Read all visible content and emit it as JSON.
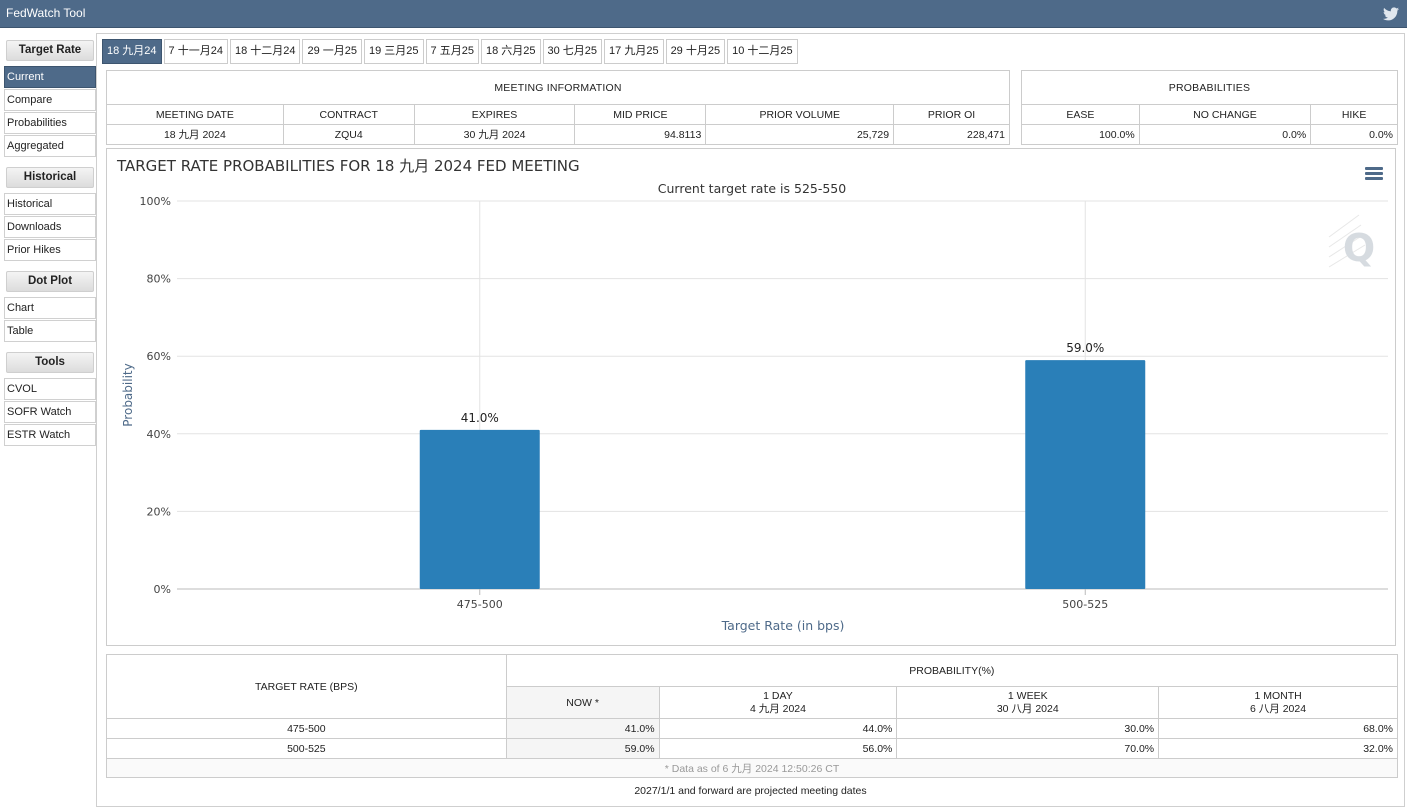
{
  "app": {
    "title": "FedWatch Tool",
    "twitter_icon": "twitter-icon"
  },
  "sidebar": {
    "sections": [
      {
        "label": "Target Rate",
        "items": [
          {
            "label": "Current",
            "active": true
          },
          {
            "label": "Compare"
          },
          {
            "label": "Probabilities"
          },
          {
            "label": "Aggregated"
          }
        ]
      },
      {
        "label": "Historical",
        "items": [
          {
            "label": "Historical"
          },
          {
            "label": "Downloads"
          },
          {
            "label": "Prior Hikes"
          }
        ]
      },
      {
        "label": "Dot Plot",
        "items": [
          {
            "label": "Chart"
          },
          {
            "label": "Table"
          }
        ]
      },
      {
        "label": "Tools",
        "items": [
          {
            "label": "CVOL"
          },
          {
            "label": "SOFR Watch"
          },
          {
            "label": "ESTR Watch"
          }
        ]
      }
    ]
  },
  "tabs": [
    "18 九月24",
    "7 十一月24",
    "18 十二月24",
    "29 一月25",
    "19 三月25",
    "7 五月25",
    "18 六月25",
    "30 七月25",
    "17 九月25",
    "29 十月25",
    "10 十二月25"
  ],
  "meeting_info": {
    "header": "MEETING INFORMATION",
    "columns": [
      "MEETING DATE",
      "CONTRACT",
      "EXPIRES",
      "MID PRICE",
      "PRIOR VOLUME",
      "PRIOR OI"
    ],
    "values": [
      "18 九月 2024",
      "ZQU4",
      "30 九月 2024",
      "94.8113",
      "25,729",
      "228,471"
    ]
  },
  "probabilities": {
    "header": "PROBABILITIES",
    "columns": [
      "EASE",
      "NO CHANGE",
      "HIKE"
    ],
    "values": [
      "100.0%",
      "0.0%",
      "0.0%"
    ]
  },
  "chart": {
    "title": "TARGET RATE PROBABILITIES FOR 18 九月 2024 FED MEETING",
    "menu_icon": "hamburger-menu-icon",
    "watermark_icon": "quikstrike-logo-icon"
  },
  "chart_data": {
    "type": "bar",
    "title": "TARGET RATE PROBABILITIES FOR 18 九月 2024 FED MEETING",
    "subtitle": "Current target rate is 525-550",
    "categories": [
      "475-500",
      "500-525"
    ],
    "values": [
      41.0,
      59.0
    ],
    "data_labels": [
      "41.0%",
      "59.0%"
    ],
    "xlabel": "Target Rate (in bps)",
    "ylabel": "Probability",
    "ylim": [
      0,
      100
    ],
    "yticks": [
      "0%",
      "20%",
      "40%",
      "60%",
      "80%",
      "100%"
    ],
    "grid": true,
    "color": "#2a7fb8"
  },
  "prob_table": {
    "col_header": "TARGET RATE (BPS)",
    "group_header": "PROBABILITY(%)",
    "sub_headers": [
      {
        "line1": "NOW *",
        "line2": ""
      },
      {
        "line1": "1 DAY",
        "line2": "4 九月 2024"
      },
      {
        "line1": "1 WEEK",
        "line2": "30 八月 2024"
      },
      {
        "line1": "1 MONTH",
        "line2": "6 八月 2024"
      }
    ],
    "rows": [
      {
        "rate": "475-500",
        "vals": [
          "41.0%",
          "44.0%",
          "30.0%",
          "68.0%"
        ]
      },
      {
        "rate": "500-525",
        "vals": [
          "59.0%",
          "56.0%",
          "70.0%",
          "32.0%"
        ]
      }
    ],
    "footnote": "* Data as of 6 九月 2024 12:50:26 CT"
  },
  "footer_note": "2027/1/1 and forward are projected meeting dates"
}
